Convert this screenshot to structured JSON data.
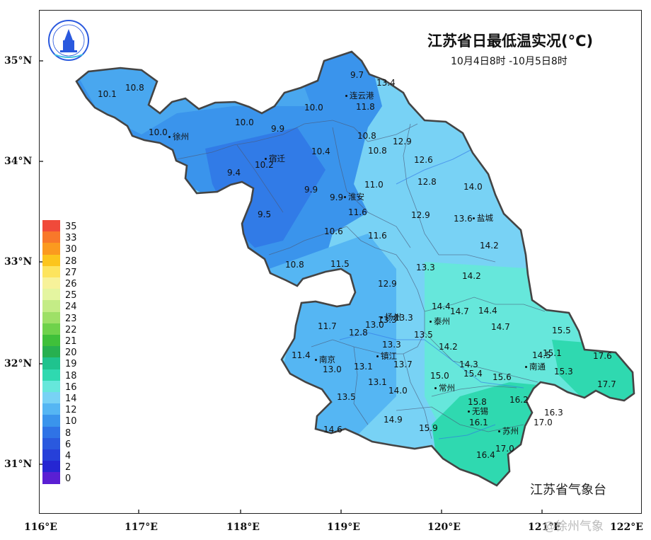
{
  "title": "江苏省日最低温实况(°C)",
  "subtitle": "10月4日8时 -10月5日8时",
  "agency": "江苏省气象台",
  "watermark": "@徐州气象",
  "lat_labels": [
    "35°N",
    "34°N",
    "33°N",
    "32°N",
    "31°N"
  ],
  "lon_labels": [
    "116°E",
    "117°E",
    "118°E",
    "119°E",
    "120°E",
    "121°E",
    "122°E"
  ],
  "legend": {
    "labels": [
      "35",
      "33",
      "30",
      "28",
      "27",
      "26",
      "25",
      "24",
      "23",
      "22",
      "21",
      "20",
      "19",
      "18",
      "16",
      "14",
      "12",
      "10",
      "8",
      "6",
      "4",
      "2",
      "0"
    ],
    "colors": [
      "#f04a3a",
      "#f8782a",
      "#fb9a1f",
      "#fcc51c",
      "#fde45e",
      "#f7f29a",
      "#e4f5a0",
      "#c4ec86",
      "#9ee067",
      "#6fd24b",
      "#3fc03a",
      "#27b050",
      "#1fc38e",
      "#2fd9b0",
      "#66e7db",
      "#78d2f5",
      "#55b6f3",
      "#3a94ec",
      "#2f73e6",
      "#2a59de",
      "#2640d9",
      "#2526d2",
      "#5a1fd3"
    ]
  },
  "cities": [
    {
      "name": "连云港"
    },
    {
      "name": "徐州"
    },
    {
      "name": "宿迁"
    },
    {
      "name": "淮安"
    },
    {
      "name": "盐城"
    },
    {
      "name": "扬州"
    },
    {
      "name": "泰州"
    },
    {
      "name": "南京"
    },
    {
      "name": "镇江"
    },
    {
      "name": "南通"
    },
    {
      "name": "常州"
    },
    {
      "name": "无锡"
    },
    {
      "name": "苏州"
    }
  ],
  "values": [
    "9.7",
    "13.4",
    "10.1",
    "10.8",
    "11.8",
    "10.0",
    "10.0",
    "9.9",
    "10.0",
    "10.8",
    "12.9",
    "10.4",
    "10.8",
    "10.2",
    "12.6",
    "9.4",
    "11.0",
    "12.8",
    "14.0",
    "9.9",
    "9.9",
    "11.6",
    "9.5",
    "12.9",
    "13.6",
    "10.6",
    "11.6",
    "14.2",
    "10.8",
    "11.5",
    "13.3",
    "14.2",
    "12.9",
    "14.4",
    "14.7",
    "14.4",
    "13.3",
    "13.0",
    "13.3",
    "11.7",
    "12.8",
    "14.7",
    "15.5",
    "13.5",
    "13.3",
    "14.2",
    "11.4",
    "15.1",
    "14.5",
    "17.6",
    "13.0",
    "13.1",
    "13.7",
    "14.3",
    "15.0",
    "15.4",
    "15.6",
    "15.3",
    "17.7",
    "13.1",
    "14.0",
    "13.5",
    "15.8",
    "16.2",
    "16.3",
    "14.6",
    "14.9",
    "15.9",
    "16.1",
    "17.0",
    "17.0",
    "16.4"
  ]
}
